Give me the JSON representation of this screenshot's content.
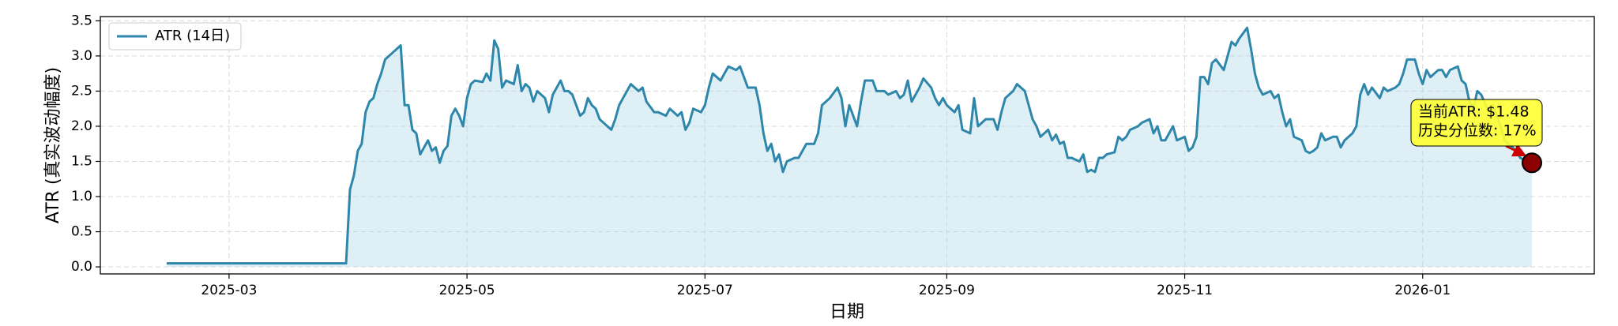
{
  "chart_data": {
    "type": "line",
    "xlabel": "日期",
    "ylabel": "ATR (真实波动幅度)",
    "x": [
      43,
      89,
      90,
      91,
      92,
      93,
      94,
      95,
      96,
      97,
      98,
      99,
      101,
      103,
      104,
      105,
      106,
      107,
      108,
      109,
      110,
      111,
      112,
      113,
      114,
      115,
      116,
      117,
      118,
      119,
      120,
      121,
      122,
      124,
      125,
      126,
      127,
      128,
      129,
      130,
      132,
      133,
      134,
      135,
      136,
      137,
      138,
      140,
      141,
      142,
      144,
      145,
      146,
      147,
      149,
      150,
      151,
      152,
      153,
      154,
      156,
      157,
      158,
      159,
      160,
      162,
      163,
      164,
      165,
      166,
      168,
      169,
      171,
      172,
      174,
      175,
      176,
      177,
      178,
      180,
      181,
      182,
      183,
      185,
      186,
      187,
      189,
      190,
      191,
      192,
      194,
      195,
      196,
      197,
      198,
      199,
      200,
      201,
      202,
      204,
      205,
      206,
      207,
      209,
      210,
      211,
      213,
      215,
      216,
      217,
      218,
      219,
      220,
      221,
      222,
      224,
      225,
      227,
      228,
      230,
      231,
      232,
      233,
      234,
      236,
      237,
      239,
      240,
      241,
      242,
      243,
      245,
      246,
      247,
      249,
      250,
      251,
      252,
      253,
      255,
      256,
      257,
      258,
      260,
      261,
      263,
      264,
      265,
      266,
      267,
      269,
      270,
      271,
      272,
      273,
      274,
      275,
      277,
      278,
      279,
      280,
      281,
      282,
      283,
      284,
      286,
      287,
      288,
      289,
      290,
      292,
      293,
      295,
      296,
      297,
      298,
      299,
      300,
      301,
      302,
      304,
      305,
      306,
      307,
      308,
      309,
      310,
      311,
      312,
      314,
      315,
      316,
      317,
      318,
      320,
      321,
      322,
      323,
      324,
      326,
      327,
      328,
      329,
      330,
      331,
      332,
      334,
      335,
      336,
      337,
      338,
      339,
      340,
      342,
      343,
      344,
      345,
      347,
      348,
      349,
      350,
      351,
      352,
      354,
      355,
      356,
      358,
      359,
      360,
      361,
      363,
      364,
      365,
      366,
      367,
      369,
      370,
      371,
      372,
      374,
      375,
      376,
      377,
      378,
      379,
      380,
      382,
      383,
      384,
      385,
      386,
      388,
      389,
      390,
      392,
      393
    ],
    "series": [
      {
        "name": "ATR (14日)",
        "color": "#2e86ab",
        "fill": "#add8e6",
        "values": [
          0.05,
          0.05,
          1.1,
          1.3,
          1.65,
          1.75,
          2.2,
          2.35,
          2.4,
          2.6,
          2.75,
          2.95,
          3.05,
          3.15,
          2.3,
          2.3,
          1.95,
          1.9,
          1.6,
          1.7,
          1.8,
          1.65,
          1.7,
          1.48,
          1.65,
          1.72,
          2.15,
          2.25,
          2.15,
          2.0,
          2.4,
          2.6,
          2.65,
          2.63,
          2.75,
          2.65,
          3.22,
          3.1,
          2.55,
          2.65,
          2.6,
          2.87,
          2.5,
          2.6,
          2.55,
          2.35,
          2.5,
          2.4,
          2.2,
          2.45,
          2.65,
          2.5,
          2.5,
          2.45,
          2.15,
          2.2,
          2.4,
          2.3,
          2.25,
          2.1,
          2.0,
          1.95,
          2.1,
          2.3,
          2.4,
          2.6,
          2.55,
          2.5,
          2.55,
          2.35,
          2.2,
          2.2,
          2.15,
          2.25,
          2.15,
          2.2,
          1.95,
          2.05,
          2.25,
          2.2,
          2.3,
          2.55,
          2.75,
          2.65,
          2.75,
          2.85,
          2.8,
          2.85,
          2.7,
          2.55,
          2.55,
          2.3,
          1.9,
          1.65,
          1.75,
          1.5,
          1.6,
          1.35,
          1.5,
          1.55,
          1.55,
          1.65,
          1.75,
          1.75,
          1.9,
          2.3,
          2.4,
          2.55,
          2.4,
          2.0,
          2.3,
          2.15,
          2.0,
          2.35,
          2.65,
          2.65,
          2.5,
          2.5,
          2.45,
          2.5,
          2.4,
          2.45,
          2.65,
          2.35,
          2.55,
          2.68,
          2.55,
          2.4,
          2.3,
          2.4,
          2.3,
          2.2,
          2.3,
          1.95,
          1.9,
          2.4,
          2.0,
          2.05,
          2.1,
          2.1,
          1.95,
          2.2,
          2.4,
          2.5,
          2.6,
          2.5,
          2.3,
          2.1,
          2.0,
          1.85,
          1.95,
          1.8,
          1.88,
          1.75,
          1.78,
          1.55,
          1.55,
          1.5,
          1.6,
          1.35,
          1.38,
          1.35,
          1.55,
          1.55,
          1.6,
          1.63,
          1.85,
          1.8,
          1.85,
          1.95,
          2.0,
          2.05,
          2.1,
          1.9,
          2.0,
          1.8,
          1.8,
          1.9,
          2.0,
          1.8,
          1.85,
          1.65,
          1.7,
          1.85,
          2.7,
          2.7,
          2.6,
          2.9,
          2.95,
          2.8,
          3.0,
          3.2,
          3.15,
          3.25,
          3.4,
          3.1,
          2.75,
          2.55,
          2.45,
          2.5,
          2.4,
          2.45,
          2.2,
          2.0,
          2.1,
          1.85,
          1.8,
          1.65,
          1.62,
          1.65,
          1.7,
          1.9,
          1.8,
          1.85,
          1.85,
          1.7,
          1.8,
          1.9,
          2.0,
          2.45,
          2.6,
          2.45,
          2.55,
          2.4,
          2.55,
          2.5,
          2.55,
          2.6,
          2.75,
          2.95,
          2.95,
          2.75,
          2.6,
          2.8,
          2.7,
          2.8,
          2.8,
          2.7,
          2.8,
          2.85,
          2.65,
          2.6,
          2.35,
          2.25,
          2.5,
          2.45,
          2.2,
          2.3,
          2.15,
          2.0,
          1.8,
          1.7,
          1.65,
          1.55,
          1.5,
          1.48
        ]
      }
    ],
    "xlim": [
      26,
      409
    ],
    "xticks": [
      {
        "value": 59,
        "label": "2025-03"
      },
      {
        "value": 120,
        "label": "2025-05"
      },
      {
        "value": 181,
        "label": "2025-07"
      },
      {
        "value": 243,
        "label": "2025-09"
      },
      {
        "value": 304,
        "label": "2025-11"
      },
      {
        "value": 365,
        "label": "2026-01"
      }
    ],
    "ylim": [
      -0.1,
      3.56
    ],
    "yticks": [
      {
        "value": 0,
        "label": "0.0"
      },
      0.5,
      {
        "value": 1,
        "label": "1.0"
      },
      1.5,
      {
        "value": 2,
        "label": "2.0"
      },
      2.5,
      {
        "value": 3,
        "label": "3.0"
      },
      3.5
    ],
    "grid": true,
    "legend": "upper left",
    "highlight": {
      "x": 393,
      "value": 1.48,
      "color": "#8b0000"
    },
    "annotation": {
      "lines": [
        "当前ATR: $1.48",
        "历史分位数: 17%"
      ],
      "box_color": "#ffff33",
      "arrow_color": "#cc0000"
    }
  }
}
